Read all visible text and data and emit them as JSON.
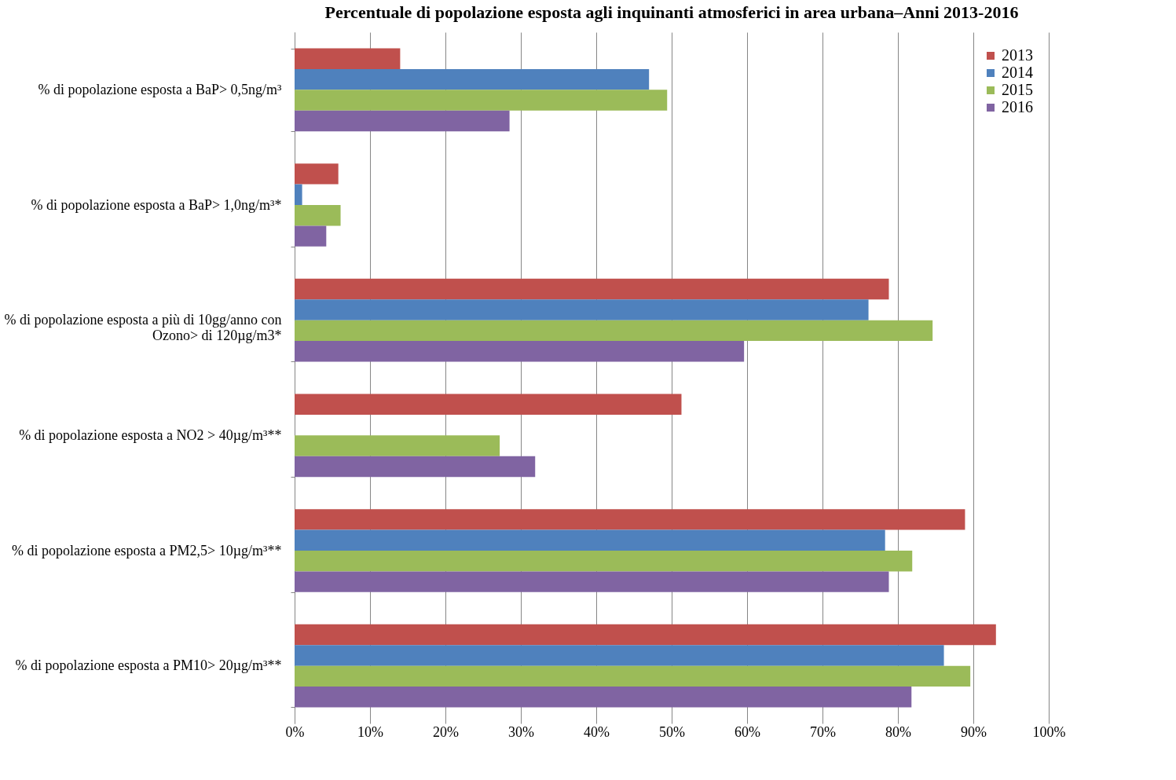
{
  "chart_data": {
    "type": "bar",
    "orientation": "horizontal",
    "title": "Percentuale di popolazione esposta agli inquinanti atmosferici in area urbana–Anni  2013-2016",
    "categories": [
      "% di popolazione esposta a BaP> 0,5ng/m³",
      "% di popolazione esposta a BaP> 1,0ng/m³*",
      "% di popolazione esposta a più di 10gg/anno con\nOzono> di 120µg/m3*",
      "% di popolazione esposta a NO2 >  40µg/m³**",
      "% di popolazione esposta a PM2,5> 10µg/m³**",
      "% di popolazione  esposta a PM10>  20µg/m³**"
    ],
    "series": [
      {
        "name": "2013",
        "color": "#c0504d",
        "values": [
          14.0,
          5.8,
          78.8,
          51.3,
          88.9,
          93.0
        ]
      },
      {
        "name": "2014",
        "color": "#4f81bd",
        "values": [
          47.0,
          1.0,
          76.1,
          null,
          78.3,
          86.1
        ]
      },
      {
        "name": "2015",
        "color": "#9bbb59",
        "values": [
          49.4,
          6.1,
          84.6,
          27.2,
          81.9,
          89.6
        ]
      },
      {
        "name": "2016",
        "color": "#8064a2",
        "values": [
          28.5,
          4.2,
          59.6,
          31.9,
          78.8,
          81.8
        ]
      }
    ],
    "xlim": [
      0,
      100
    ],
    "xticks": [
      {
        "value": 0,
        "label": "0%"
      },
      {
        "value": 10,
        "label": "10%"
      },
      {
        "value": 20,
        "label": "20%"
      },
      {
        "value": 30,
        "label": "30%"
      },
      {
        "value": 40,
        "label": "40%"
      },
      {
        "value": 50,
        "label": "50%"
      },
      {
        "value": 60,
        "label": "60%"
      },
      {
        "value": 70,
        "label": "70%"
      },
      {
        "value": 80,
        "label": "80%"
      },
      {
        "value": 90,
        "label": "90%"
      },
      {
        "value": 100,
        "label": "100%"
      }
    ],
    "grid": "x",
    "legend": "top right"
  }
}
